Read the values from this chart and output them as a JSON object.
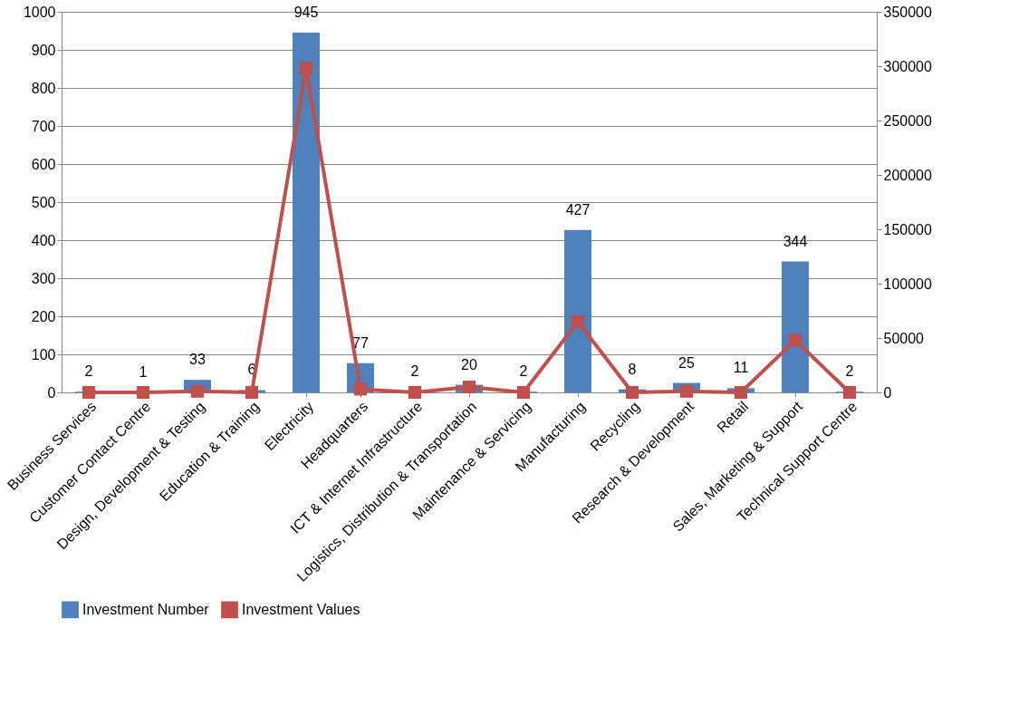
{
  "chart_data": {
    "type": "bar",
    "categories": [
      "Business Services",
      "Customer Contact Centre",
      "Design, Development & Testing",
      "Education & Training",
      "Electricity",
      "Headquarters",
      "ICT & Internet Infrastructure",
      "Logistics, Distribution & Transportation",
      "Maintenance & Servicing",
      "Manufacturing",
      "Recycling",
      "Research & Development",
      "Retail",
      "Sales, Marketing & Support",
      "Technical Support Centre"
    ],
    "series": [
      {
        "name": "Investment Number",
        "color": "#4f81bd",
        "values": [
          2,
          1,
          33,
          6,
          945,
          77,
          2,
          20,
          2,
          427,
          8,
          25,
          11,
          344,
          2
        ],
        "data_labels": true
      },
      {
        "name": "Investment Values",
        "color": "#c0504d",
        "type": "line",
        "axis": "y2",
        "marker": "square",
        "values": [
          0,
          0,
          1000,
          0,
          298000,
          3000,
          0,
          5000,
          0,
          65000,
          0,
          1000,
          0,
          48000,
          0
        ]
      }
    ],
    "ylim": [
      0,
      1000
    ],
    "yticks": [
      0,
      100,
      200,
      300,
      400,
      500,
      600,
      700,
      800,
      900,
      1000
    ],
    "y2lim": [
      0,
      350000
    ],
    "y2ticks": [
      0,
      50000,
      100000,
      150000,
      200000,
      250000,
      300000,
      350000
    ],
    "grid": "y",
    "legend": "bottom"
  }
}
